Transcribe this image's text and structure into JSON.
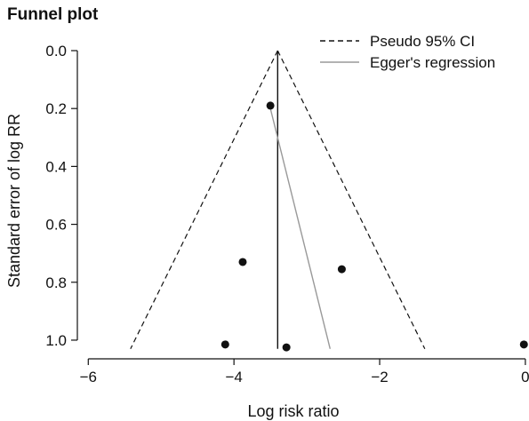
{
  "chart_data": {
    "type": "scatter",
    "title": "Funnel plot",
    "xlabel": "Log risk ratio",
    "ylabel": "Standard error of log RR",
    "xlim": [
      -6.15,
      0.05
    ],
    "ylim": [
      0.0,
      1.04
    ],
    "y_inverted": true,
    "x_ticks": [
      -6,
      -4,
      -2,
      0
    ],
    "x_tick_labels": [
      "−6",
      "−4",
      "−2",
      "0"
    ],
    "y_ticks": [
      0.0,
      0.2,
      0.4,
      0.6,
      0.8,
      1.0
    ],
    "y_tick_labels": [
      "0.0",
      "0.2",
      "0.4",
      "0.6",
      "0.8",
      "1.0"
    ],
    "grid": false,
    "legend_position": "top-right",
    "legend": [
      {
        "label": "Pseudo 95% CI",
        "style": "dashed",
        "color": "#111111"
      },
      {
        "label": "Egger's regression",
        "style": "solid",
        "color": "#999999"
      }
    ],
    "pooled_estimate": -3.4,
    "pseudo_ci_lines": [
      {
        "x": [
          -3.4,
          -5.42
        ],
        "y": [
          0.0,
          1.03
        ]
      },
      {
        "x": [
          -3.4,
          -1.38
        ],
        "y": [
          0.0,
          1.03
        ]
      }
    ],
    "egger_line": {
      "x": [
        -3.5,
        -2.68
      ],
      "y": [
        0.2,
        1.03
      ]
    },
    "points": [
      {
        "x": -3.5,
        "y": 0.19
      },
      {
        "x": -3.88,
        "y": 0.73
      },
      {
        "x": -2.52,
        "y": 0.755
      },
      {
        "x": -4.12,
        "y": 1.015
      },
      {
        "x": -3.28,
        "y": 1.025
      },
      {
        "x": -0.02,
        "y": 1.015
      }
    ]
  }
}
